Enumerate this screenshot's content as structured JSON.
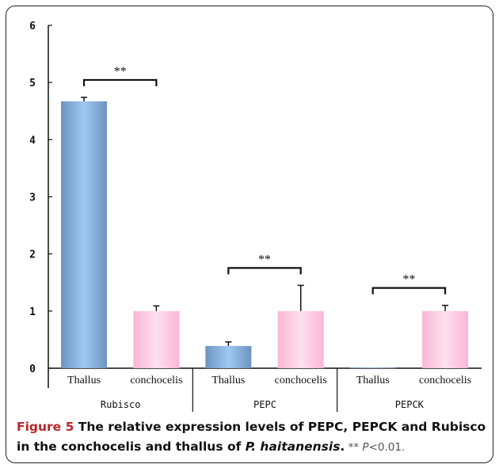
{
  "chart_data": {
    "type": "bar",
    "groups": [
      {
        "name": "Rubisco",
        "categories": [
          "Thallus",
          "conchocelis"
        ],
        "values": [
          4.67,
          1.0
        ],
        "errors": [
          0.07,
          0.09
        ],
        "significance": "**"
      },
      {
        "name": "PEPC",
        "categories": [
          "Thallus",
          "conchocelis"
        ],
        "values": [
          0.39,
          1.0
        ],
        "errors": [
          0.07,
          0.45
        ],
        "significance": "**"
      },
      {
        "name": "PEPCK",
        "categories": [
          "Thallus",
          "conchocelis"
        ],
        "values": [
          0.01,
          1.0
        ],
        "errors": [
          0.0,
          0.1
        ],
        "significance": "**"
      }
    ],
    "ylim": [
      0,
      6
    ],
    "yticks": [
      "0",
      "1",
      "2",
      "3",
      "4",
      "5",
      "6"
    ],
    "colors": {
      "Thallus": "#7aa4d0",
      "conchocelis": "#fcc0dc"
    },
    "grid": false
  },
  "caption": {
    "figure": "Figure 5",
    "title_part1": " The relative expression levels of PEPC, PEPCK and Rubisco in the conchocelis and thallus of ",
    "species": "P. haitanensis",
    "title_end": ".",
    "note_sig": " ** ",
    "note_p": "P",
    "note_rest": "<0.01."
  }
}
